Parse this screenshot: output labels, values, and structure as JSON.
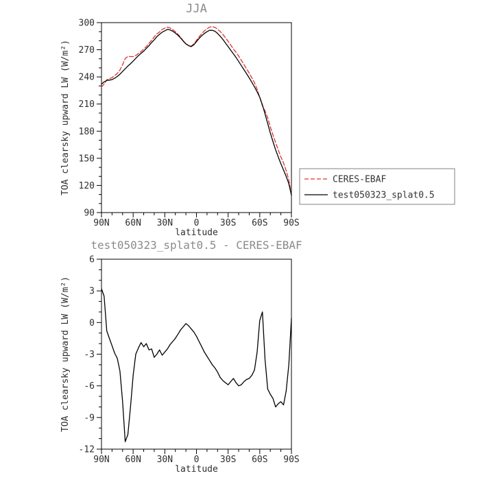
{
  "figure": {
    "background": "#ffffff",
    "colors": {
      "axis": "#000000",
      "tick_label": "#2e2e2e",
      "title": "#8a8a8a",
      "axis_label": "#2e2e2e",
      "legend_border": "#808080",
      "legend_text": "#333333",
      "ceres_red": "#e03030",
      "model_black": "#000000"
    }
  },
  "chart_data": [
    {
      "type": "line",
      "title": "JJA",
      "xlabel": "latitude",
      "ylabel": "TOA clearsky upward LW (W/m²)",
      "xlim": [
        90,
        -90
      ],
      "ylim": [
        90,
        300
      ],
      "xticks": [
        {
          "v": 90,
          "label": "90N"
        },
        {
          "v": 60,
          "label": "60N"
        },
        {
          "v": 30,
          "label": "30N"
        },
        {
          "v": 0,
          "label": "0"
        },
        {
          "v": -30,
          "label": "30S"
        },
        {
          "v": -60,
          "label": "60S"
        },
        {
          "v": -90,
          "label": "90S"
        }
      ],
      "yticks": [
        90,
        120,
        150,
        180,
        210,
        240,
        270,
        300
      ],
      "x_minor": 10,
      "y_minor": 10,
      "x": [
        90,
        87.5,
        85,
        82.5,
        80,
        77.5,
        75,
        72.5,
        70,
        67.5,
        65,
        62.5,
        60,
        57.5,
        55,
        52.5,
        50,
        47.5,
        45,
        42.5,
        40,
        37.5,
        35,
        32.5,
        30,
        27.5,
        25,
        22.5,
        20,
        17.5,
        15,
        12.5,
        10,
        7.5,
        5,
        2.5,
        0,
        -2.5,
        -5,
        -7.5,
        -10,
        -12.5,
        -15,
        -17.5,
        -20,
        -22.5,
        -25,
        -27.5,
        -30,
        -32.5,
        -35,
        -37.5,
        -40,
        -42.5,
        -45,
        -47.5,
        -50,
        -52.5,
        -55,
        -57.5,
        -60,
        -62.5,
        -65,
        -67.5,
        -70,
        -72.5,
        -75,
        -77.5,
        -80,
        -82.5,
        -85,
        -87.5,
        -90
      ],
      "series": [
        {
          "name": "CERES-EBAF",
          "color": "#e03030",
          "dash": "6,3",
          "values": [
            228.7,
            232,
            236.8,
            238,
            239.2,
            241.4,
            243.9,
            247.6,
            253.5,
            260.3,
            262.6,
            262.5,
            262.5,
            263.5,
            265.9,
            267.9,
            270.8,
            273.5,
            277.1,
            280.5,
            284.3,
            287.5,
            289.6,
            292.6,
            293.8,
            295,
            294.1,
            292.3,
            290,
            287.1,
            283.7,
            279.9,
            276.6,
            274.8,
            274.1,
            276.4,
            280.3,
            284.3,
            287.8,
            290.8,
            293.2,
            295.1,
            295.5,
            294.8,
            292.7,
            290.2,
            287,
            283.2,
            279.4,
            275.1,
            270.8,
            267.2,
            263,
            258.4,
            253.6,
            248.9,
            244.3,
            239,
            233.5,
            226.3,
            217.3,
            208,
            202.5,
            194.8,
            184.8,
            175.7,
            167.5,
            159.2,
            151.5,
            144.8,
            136.5,
            126,
            109.4
          ]
        },
        {
          "name": "test050323_splat0.5",
          "color": "#000000",
          "dash": null,
          "values": [
            232,
            234.5,
            236,
            236.5,
            237,
            238.5,
            240.5,
            243,
            246,
            249,
            252,
            254.5,
            257.5,
            260.5,
            263.5,
            266,
            268.5,
            271.5,
            274.5,
            278,
            281,
            284.5,
            287,
            289.5,
            291,
            292.5,
            292,
            290.5,
            288.5,
            286,
            283,
            279.5,
            276.5,
            274.5,
            273.5,
            275.5,
            279,
            282.5,
            285.5,
            288,
            290,
            291.5,
            291.5,
            290.5,
            288,
            285,
            281.5,
            277.5,
            273.5,
            269.5,
            265.5,
            261.5,
            257,
            252.5,
            248,
            243.5,
            239,
            234,
            229,
            223.5,
            217.5,
            209,
            199,
            188.5,
            178,
            168.5,
            159.5,
            151.5,
            144,
            137,
            130,
            122,
            109
          ]
        }
      ],
      "legend": {
        "position": "right-outside",
        "entries": [
          {
            "label": "CERES-EBAF",
            "color": "#e03030",
            "dash": "6,3"
          },
          {
            "label": "test050323_splat0.5",
            "color": "#000000",
            "dash": null
          }
        ]
      }
    },
    {
      "type": "line",
      "title": "test050323_splat0.5 - CERES-EBAF",
      "xlabel": "latitude",
      "ylabel": "TOA clearsky upward LW (W/m²)",
      "xlim": [
        90,
        -90
      ],
      "ylim": [
        -12,
        6
      ],
      "xticks": [
        {
          "v": 90,
          "label": "90N"
        },
        {
          "v": 60,
          "label": "60N"
        },
        {
          "v": 30,
          "label": "30N"
        },
        {
          "v": 0,
          "label": "0"
        },
        {
          "v": -30,
          "label": "30S"
        },
        {
          "v": -60,
          "label": "60S"
        },
        {
          "v": -90,
          "label": "90S"
        }
      ],
      "yticks": [
        -12,
        -9,
        -6,
        -3,
        0,
        3,
        6
      ],
      "x_minor": 10,
      "y_minor": 1,
      "x": [
        90,
        87.5,
        85,
        82.5,
        80,
        77.5,
        75,
        72.5,
        70,
        67.5,
        65,
        62.5,
        60,
        57.5,
        55,
        52.5,
        50,
        47.5,
        45,
        42.5,
        40,
        37.5,
        35,
        32.5,
        30,
        27.5,
        25,
        22.5,
        20,
        17.5,
        15,
        12.5,
        10,
        7.5,
        5,
        2.5,
        0,
        -2.5,
        -5,
        -7.5,
        -10,
        -12.5,
        -15,
        -17.5,
        -20,
        -22.5,
        -25,
        -27.5,
        -30,
        -32.5,
        -35,
        -37.5,
        -40,
        -42.5,
        -45,
        -47.5,
        -50,
        -52.5,
        -55,
        -57.5,
        -60,
        -62.5,
        -65,
        -67.5,
        -70,
        -72.5,
        -75,
        -77.5,
        -80,
        -82.5,
        -85,
        -87.5,
        -90
      ],
      "series": [
        {
          "name": "test050323_splat0.5 - CERES-EBAF",
          "color": "#000000",
          "dash": null,
          "values": [
            3.2,
            2.5,
            -0.8,
            -1.5,
            -2.2,
            -2.9,
            -3.4,
            -4.6,
            -7.5,
            -11.3,
            -10.6,
            -8,
            -5,
            -3,
            -2.4,
            -1.9,
            -2.3,
            -2,
            -2.6,
            -2.5,
            -3.3,
            -3,
            -2.6,
            -3.1,
            -2.8,
            -2.5,
            -2.1,
            -1.8,
            -1.5,
            -1.1,
            -0.7,
            -0.4,
            -0.1,
            -0.3,
            -0.6,
            -0.9,
            -1.3,
            -1.8,
            -2.3,
            -2.8,
            -3.2,
            -3.6,
            -4,
            -4.3,
            -4.7,
            -5.2,
            -5.5,
            -5.7,
            -5.9,
            -5.6,
            -5.3,
            -5.7,
            -6,
            -5.9,
            -5.6,
            -5.4,
            -5.3,
            -5,
            -4.5,
            -2.8,
            0.2,
            1,
            -3.5,
            -6.3,
            -6.8,
            -7.2,
            -8,
            -7.7,
            -7.5,
            -7.8,
            -6.5,
            -4,
            0.4
          ]
        }
      ]
    }
  ]
}
